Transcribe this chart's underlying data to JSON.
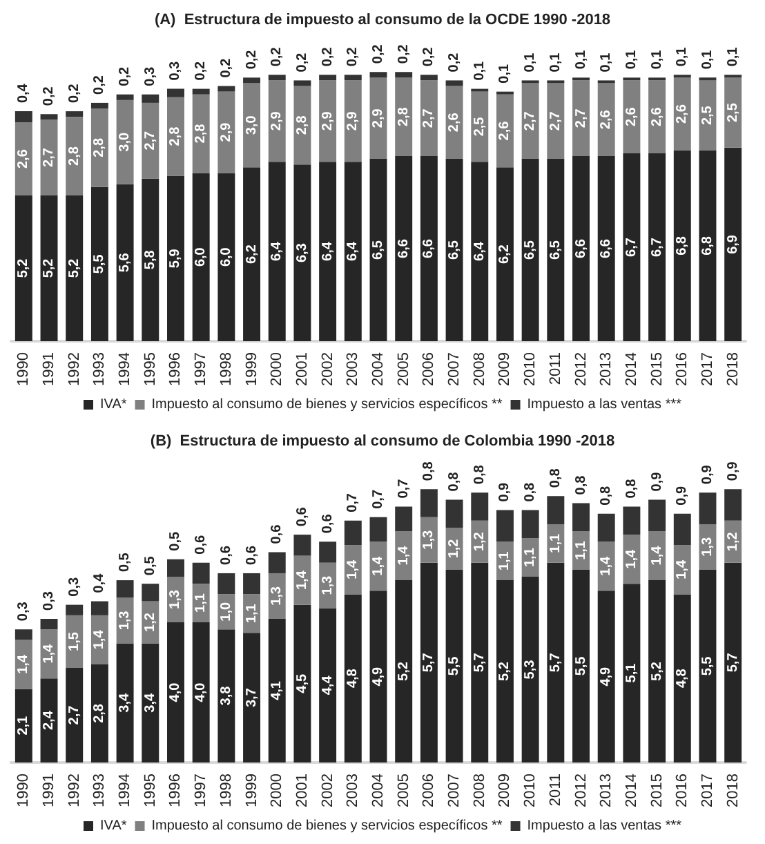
{
  "chart_data": [
    {
      "type": "bar",
      "stacked": true,
      "title": "(A)  Estructura de impuesto al consumo de la OCDE 1990 -2018",
      "categories": [
        "1990",
        "1991",
        "1992",
        "1993",
        "1994",
        "1995",
        "1996",
        "1997",
        "1998",
        "1999",
        "2000",
        "2001",
        "2002",
        "2003",
        "2004",
        "2005",
        "2006",
        "2007",
        "2008",
        "2009",
        "2010",
        "2011",
        "2012",
        "2013",
        "2014",
        "2015",
        "2016",
        "2017",
        "2018"
      ],
      "series": [
        {
          "name": "IVA*",
          "color": "#262626",
          "values": [
            5.2,
            5.2,
            5.2,
            5.5,
            5.6,
            5.8,
            5.9,
            6.0,
            6.0,
            6.2,
            6.4,
            6.3,
            6.4,
            6.4,
            6.5,
            6.6,
            6.6,
            6.5,
            6.4,
            6.2,
            6.5,
            6.5,
            6.6,
            6.6,
            6.7,
            6.7,
            6.8,
            6.8,
            6.9
          ],
          "value_labels": [
            "5,2",
            "5,2",
            "5,2",
            "5,5",
            "5,6",
            "5,8",
            "5,9",
            "6,0",
            "6,0",
            "6,2",
            "6,4",
            "6,3",
            "6,4",
            "6,4",
            "6,5",
            "6,6",
            "6,6",
            "6,5",
            "6,4",
            "6,2",
            "6,5",
            "6,5",
            "6,6",
            "6,6",
            "6,7",
            "6,7",
            "6,8",
            "6,8",
            "6,9"
          ]
        },
        {
          "name": "Impuesto al consumo de bienes y servicios específicos **",
          "color": "#808080",
          "values": [
            2.6,
            2.7,
            2.8,
            2.8,
            3.0,
            2.7,
            2.8,
            2.8,
            2.9,
            3.0,
            2.9,
            2.8,
            2.9,
            2.9,
            2.9,
            2.8,
            2.7,
            2.6,
            2.5,
            2.6,
            2.7,
            2.7,
            2.7,
            2.6,
            2.6,
            2.6,
            2.6,
            2.5,
            2.5
          ],
          "value_labels": [
            "2,6",
            "2,7",
            "2,8",
            "2,8",
            "3,0",
            "2,7",
            "2,8",
            "2,8",
            "2,9",
            "3,0",
            "2,9",
            "2,8",
            "2,9",
            "2,9",
            "2,9",
            "2,8",
            "2,7",
            "2,6",
            "2,5",
            "2,6",
            "2,7",
            "2,7",
            "2,7",
            "2,6",
            "2,6",
            "2,6",
            "2,6",
            "2,5",
            "2,5"
          ]
        },
        {
          "name": "Impuesto a las ventas ***",
          "color": "#333333",
          "values": [
            0.4,
            0.2,
            0.2,
            0.2,
            0.2,
            0.3,
            0.3,
            0.2,
            0.2,
            0.2,
            0.2,
            0.2,
            0.2,
            0.2,
            0.2,
            0.2,
            0.2,
            0.2,
            0.1,
            0.1,
            0.1,
            0.1,
            0.1,
            0.1,
            0.1,
            0.1,
            0.1,
            0.1,
            0.1
          ],
          "value_labels": [
            "0,4",
            "0,2",
            "0,2",
            "0,2",
            "0,2",
            "0,3",
            "0,3",
            "0,2",
            "0,2",
            "0,2",
            "0,2",
            "0,2",
            "0,2",
            "0,2",
            "0,2",
            "0,2",
            "0,2",
            "0,2",
            "0,1",
            "0,1",
            "0,1",
            "0,1",
            "0,1",
            "0,1",
            "0,1",
            "0,1",
            "0,1",
            "0,1",
            "0,1"
          ]
        }
      ],
      "legend": "bottom"
    },
    {
      "type": "bar",
      "stacked": true,
      "title": "(B)  Estructura de impuesto al consumo de Colombia 1990 -2018",
      "categories": [
        "1990",
        "1991",
        "1992",
        "1993",
        "1994",
        "1995",
        "1996",
        "1997",
        "1998",
        "1999",
        "2000",
        "2001",
        "2002",
        "2003",
        "2004",
        "2005",
        "2006",
        "2007",
        "2008",
        "2009",
        "2010",
        "2011",
        "2012",
        "2013",
        "2014",
        "2015",
        "2016",
        "2017",
        "2018"
      ],
      "series": [
        {
          "name": "IVA*",
          "color": "#262626",
          "values": [
            2.1,
            2.4,
            2.7,
            2.8,
            3.4,
            3.4,
            4.0,
            4.0,
            3.8,
            3.7,
            4.1,
            4.5,
            4.4,
            4.8,
            4.9,
            5.2,
            5.7,
            5.5,
            5.7,
            5.2,
            5.3,
            5.7,
            5.5,
            4.9,
            5.1,
            5.2,
            4.8,
            5.5,
            5.7
          ],
          "value_labels": [
            "2,1",
            "2,4",
            "2,7",
            "2,8",
            "3,4",
            "3,4",
            "4,0",
            "4,0",
            "3,8",
            "3,7",
            "4,1",
            "4,5",
            "4,4",
            "4,8",
            "4,9",
            "5,2",
            "5,7",
            "5,5",
            "5,7",
            "5,2",
            "5,3",
            "5,7",
            "5,5",
            "4,9",
            "5,1",
            "5,2",
            "4,8",
            "5,5",
            "5,7"
          ]
        },
        {
          "name": "Impuesto al consumo de bienes y servicios específicos **",
          "color": "#808080",
          "values": [
            1.4,
            1.4,
            1.5,
            1.4,
            1.3,
            1.2,
            1.3,
            1.1,
            1.0,
            1.1,
            1.3,
            1.4,
            1.3,
            1.4,
            1.4,
            1.4,
            1.3,
            1.2,
            1.2,
            1.1,
            1.1,
            1.1,
            1.1,
            1.4,
            1.4,
            1.4,
            1.4,
            1.3,
            1.2
          ],
          "value_labels": [
            "1,4",
            "1,4",
            "1,5",
            "1,4",
            "1,3",
            "1,2",
            "1,3",
            "1,1",
            "1,0",
            "1,1",
            "1,3",
            "1,4",
            "1,3",
            "1,4",
            "1,4",
            "1,4",
            "1,3",
            "1,2",
            "1,2",
            "1,1",
            "1,1",
            "1,1",
            "1,1",
            "1,4",
            "1,4",
            "1,4",
            "1,4",
            "1,3",
            "1,2"
          ]
        },
        {
          "name": "Impuesto a las ventas ***",
          "color": "#333333",
          "values": [
            0.3,
            0.3,
            0.3,
            0.4,
            0.5,
            0.5,
            0.5,
            0.6,
            0.6,
            0.6,
            0.6,
            0.6,
            0.6,
            0.7,
            0.7,
            0.7,
            0.8,
            0.8,
            0.8,
            0.9,
            0.8,
            0.8,
            0.8,
            0.8,
            0.8,
            0.9,
            0.9,
            0.9,
            0.9
          ],
          "value_labels": [
            "0,3",
            "0,3",
            "0,3",
            "0,4",
            "0,5",
            "0,5",
            "0,5",
            "0,6",
            "0,6",
            "0,6",
            "0,6",
            "0,6",
            "0,6",
            "0,7",
            "0,7",
            "0,7",
            "0,8",
            "0,8",
            "0,8",
            "0,9",
            "0,8",
            "0,8",
            "0,8",
            "0,8",
            "0,8",
            "0,9",
            "0,9",
            "0,9",
            "0,9"
          ]
        }
      ],
      "legend": "bottom"
    }
  ]
}
